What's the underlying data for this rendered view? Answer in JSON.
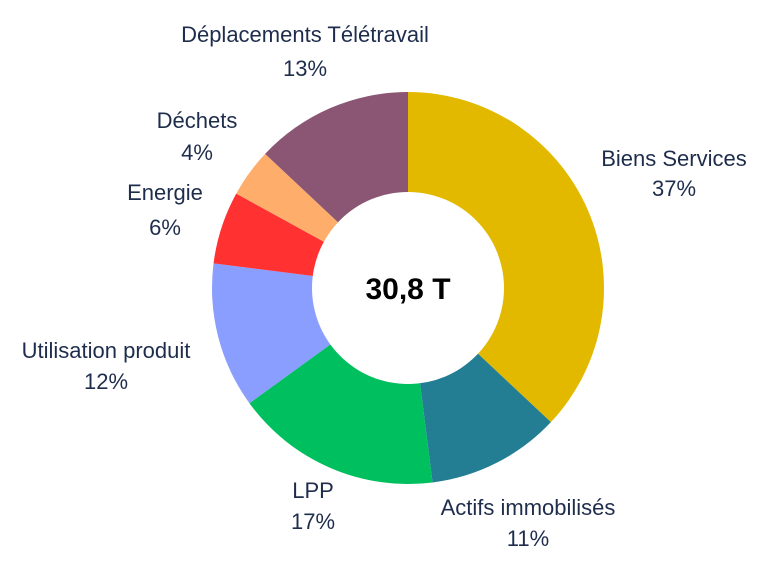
{
  "chart_data": {
    "type": "pie",
    "donut": true,
    "center_label": "30,8 T",
    "slices": [
      {
        "label": "Biens Services",
        "pct_label": "37%",
        "value": 37,
        "color": "#E3B900"
      },
      {
        "label": "Actifs immobilisés",
        "pct_label": "11%",
        "value": 11,
        "color": "#237D93"
      },
      {
        "label": "LPP",
        "pct_label": "17%",
        "value": 17,
        "color": "#00BF5E"
      },
      {
        "label": "Utilisation produit",
        "pct_label": "12%",
        "value": 12,
        "color": "#8A9EFF"
      },
      {
        "label": "Energie",
        "pct_label": "6%",
        "value": 6,
        "color": "#FF3131"
      },
      {
        "label": "Déchets",
        "pct_label": "4%",
        "value": 4,
        "color": "#FFAD6B"
      },
      {
        "label": "Déplacements Télétravail",
        "pct_label": "13%",
        "value": 13,
        "color": "#8A5673"
      }
    ]
  }
}
